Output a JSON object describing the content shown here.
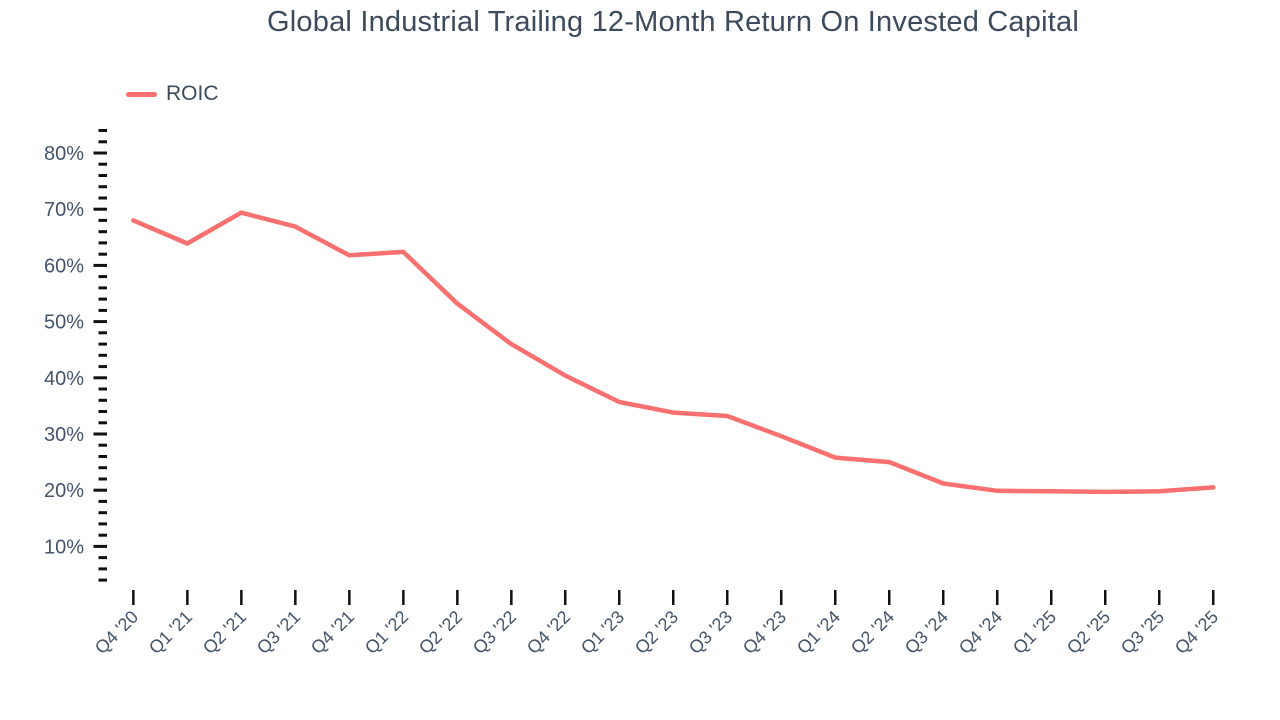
{
  "colors": {
    "background": "#ffffff",
    "title_text": "#3c4a5c",
    "axis_label_text": "#46546a",
    "tick_mark": "#111111",
    "series_line": "#f87070"
  },
  "legend": {
    "items": [
      {
        "label": "ROIC",
        "color": "#f87070"
      }
    ]
  },
  "chart_data": {
    "type": "line",
    "title": "Global Industrial Trailing 12-Month Return On Invested Capital",
    "xlabel": "",
    "ylabel": "",
    "categories": [
      "Q4 '20",
      "Q1 '21",
      "Q2 '21",
      "Q3 '21",
      "Q4 '21",
      "Q1 '22",
      "Q2 '22",
      "Q3 '22",
      "Q4 '22",
      "Q1 '23",
      "Q2 '23",
      "Q3 '23",
      "Q4 '23",
      "Q1 '24",
      "Q2 '24",
      "Q3 '24",
      "Q4 '24",
      "Q1 '25",
      "Q2 '25",
      "Q3 '25",
      "Q4 '25"
    ],
    "series": [
      {
        "name": "ROIC",
        "color": "#f87070",
        "values": [
          68.0,
          63.9,
          69.4,
          66.9,
          61.8,
          62.4,
          53.2,
          46.0,
          40.4,
          35.7,
          33.8,
          33.2,
          29.6,
          25.8,
          25.0,
          21.2,
          19.9,
          19.8,
          19.7,
          19.8,
          20.5
        ]
      }
    ],
    "y_axis": {
      "tick_labels": [
        "80%",
        "70%",
        "60%",
        "50%",
        "40%",
        "30%",
        "20%",
        "10%"
      ],
      "major_ticks": [
        80,
        70,
        60,
        50,
        40,
        30,
        20,
        10
      ],
      "minor_step": 2,
      "ticks_range_shown": [
        4,
        84
      ],
      "unit": "percent"
    },
    "ylim": [
      0,
      85
    ],
    "grid": false,
    "legend_position": "top-left",
    "x_label_rotation_deg": -45
  }
}
